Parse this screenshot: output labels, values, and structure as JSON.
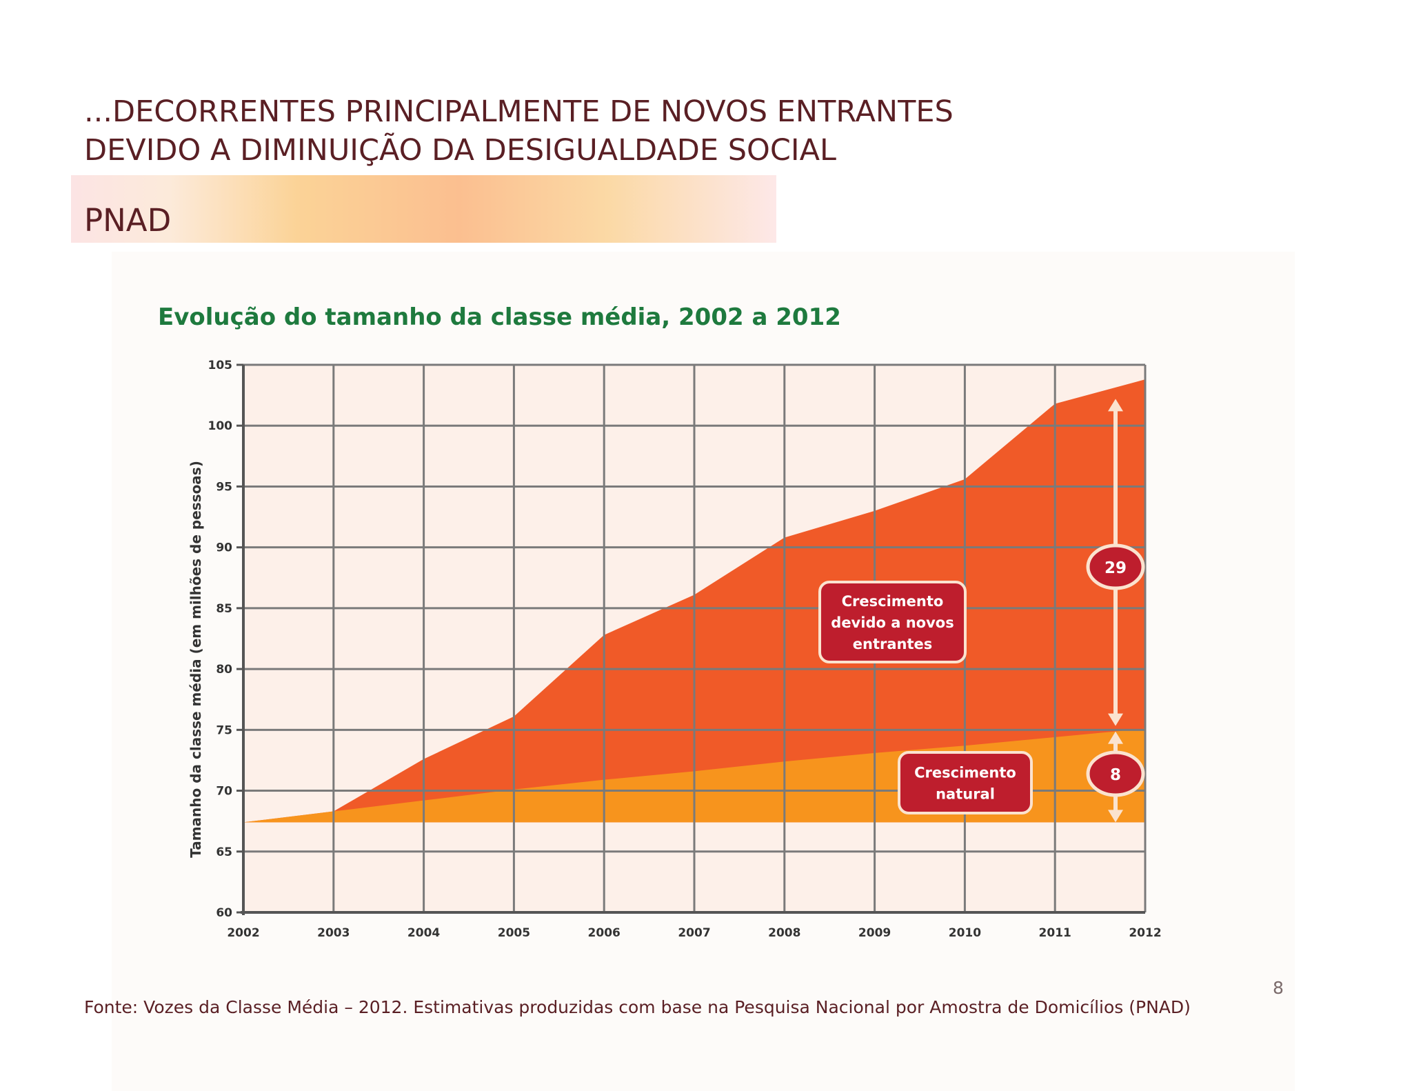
{
  "slide": {
    "title_line1": "...DECORRENTES PRINCIPALMENTE DE NOVOS ENTRANTES",
    "title_line2": "DEVIDO A DIMINUIÇÃO DA DESIGUALDADE SOCIAL",
    "band_label": "PNAD",
    "source": "Fonte:  Vozes da Classe Média – 2012. Estimativas produzidas com base na Pesquisa Nacional por Amostra de Domicílios (PNAD)",
    "page_number": "8"
  },
  "colors": {
    "title_text": "#5a1f24",
    "chart_title": "#1e7a3e",
    "plot_background": "#fdf0e9",
    "grid": "#7a7a7a",
    "new_entrants_area": "#f05a28",
    "natural_area": "#f7941d",
    "label_box": "#be1e2d",
    "arrow": "#fbe3cf"
  },
  "chart_data": {
    "type": "area",
    "title": "Evolução do tamanho da classe média, 2002 a 2012",
    "ylabel": "Tamanho da classe média (em milhões de pessoas)",
    "xlabel": "",
    "x": [
      "2002",
      "2003",
      "2004",
      "2005",
      "2006",
      "2007",
      "2008",
      "2009",
      "2010",
      "2011",
      "2012"
    ],
    "x_ticks": [
      "2002",
      "2003",
      "2004",
      "2005",
      "2006",
      "2007",
      "2008",
      "2009",
      "2010",
      "2011",
      "2012"
    ],
    "y_ticks": [
      "60",
      "65",
      "70",
      "75",
      "80",
      "85",
      "90",
      "95",
      "100",
      "105"
    ],
    "ylim": [
      60,
      105
    ],
    "grid": true,
    "baseline": 67.4,
    "series": [
      {
        "name": "Crescimento natural",
        "values": [
          67.4,
          68.3,
          69.2,
          70.1,
          70.9,
          71.6,
          72.4,
          73.1,
          73.7,
          74.4,
          75.1
        ]
      },
      {
        "name": "Crescimento devido a novos entrantes",
        "values": [
          67.4,
          68.3,
          72.6,
          76.1,
          82.8,
          86.1,
          90.8,
          93.0,
          95.6,
          101.8,
          103.8
        ]
      }
    ],
    "annotations": [
      {
        "text": "29",
        "meaning": "novos entrantes (milhões)"
      },
      {
        "text": "8",
        "meaning": "crescimento natural (milhões)"
      }
    ],
    "labels": {
      "new_entrants": [
        "Crescimento",
        "devido a novos",
        "entrantes"
      ],
      "natural": [
        "Crescimento",
        "natural"
      ]
    }
  }
}
